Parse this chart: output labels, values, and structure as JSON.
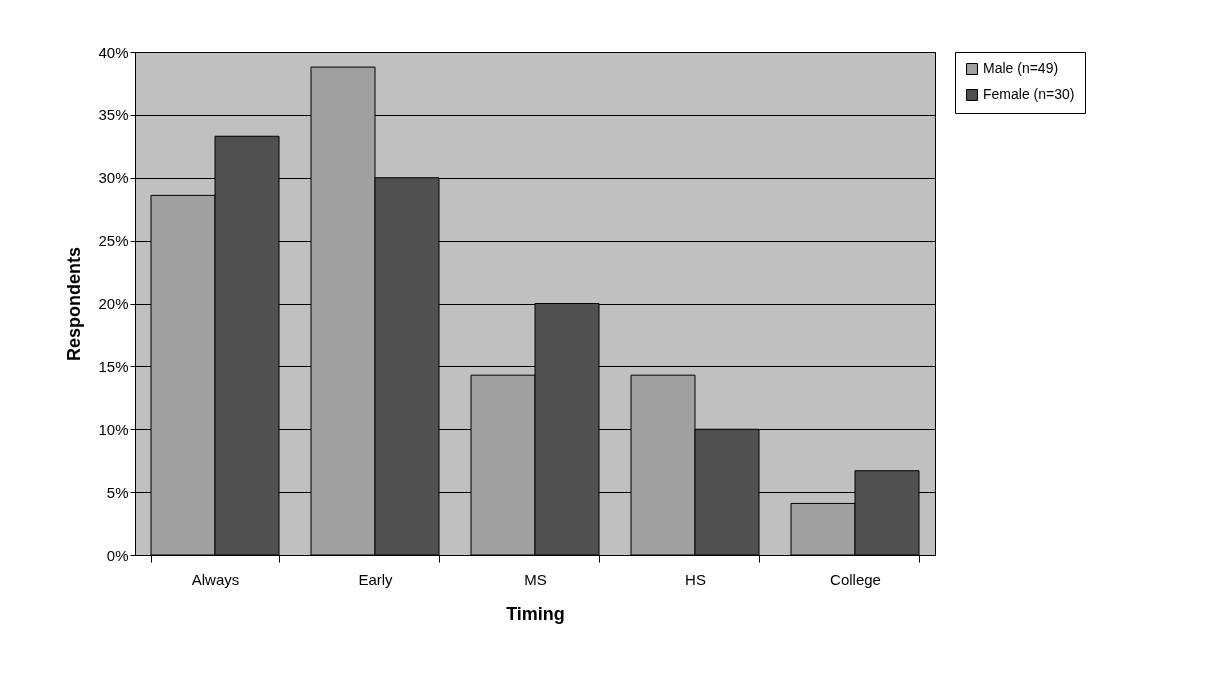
{
  "chart_data": {
    "type": "bar",
    "xlabel": "Timing",
    "ylabel": "Respondents",
    "categories": [
      "Always",
      "Early",
      "MS",
      "HS",
      "College"
    ],
    "series": [
      {
        "name": "Male (n=49)",
        "color": "#a0a0a0",
        "values": [
          28.6,
          38.8,
          14.3,
          14.3,
          4.1
        ]
      },
      {
        "name": "Female (n=30)",
        "color": "#505050",
        "values": [
          33.3,
          30,
          20,
          10,
          6.7
        ]
      }
    ],
    "ylim": [
      0,
      40
    ],
    "yticks": [
      {
        "value": 0,
        "label": "0%"
      },
      {
        "value": 5,
        "label": "5%"
      },
      {
        "value": 10,
        "label": "10%"
      },
      {
        "value": 15,
        "label": "15%"
      },
      {
        "value": 20,
        "label": "20%"
      },
      {
        "value": 25,
        "label": "25%"
      },
      {
        "value": 30,
        "label": "30%"
      },
      {
        "value": 35,
        "label": "35%"
      },
      {
        "value": 40,
        "label": "40%"
      }
    ],
    "grid": "y",
    "legend": "right"
  }
}
